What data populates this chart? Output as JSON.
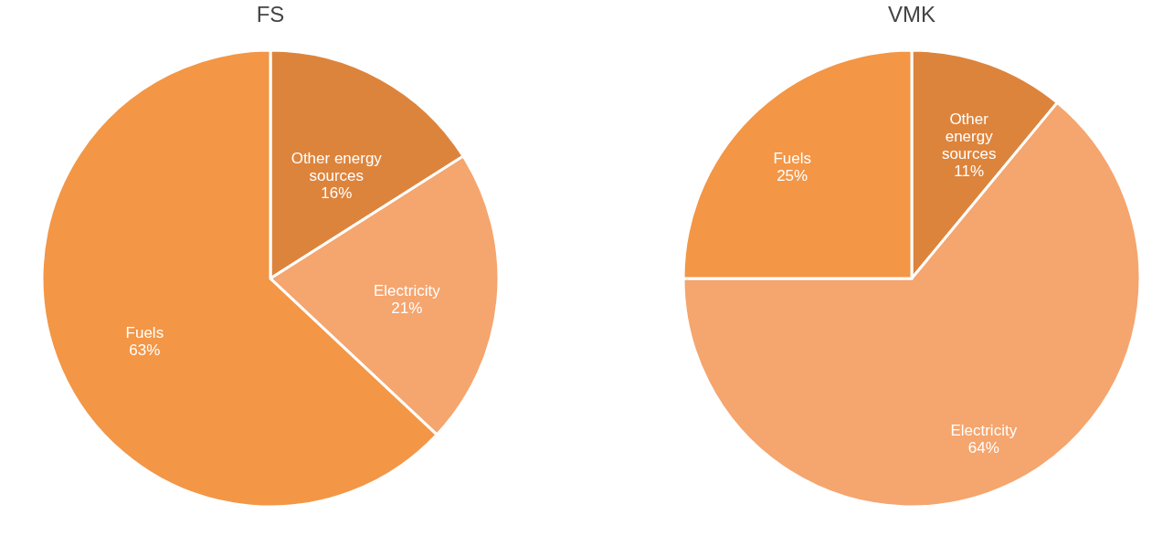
{
  "chart_data": [
    {
      "type": "pie",
      "title": "FS",
      "categories": [
        "Other energy sources",
        "Electricity",
        "Fuels"
      ],
      "values": [
        16,
        21,
        63
      ],
      "value_labels": [
        "16%",
        "21%",
        "63%"
      ],
      "colors": [
        "#dd843c",
        "#f5a56e",
        "#f39646"
      ]
    },
    {
      "type": "pie",
      "title": "VMK",
      "categories": [
        "Other energy sources",
        "Electricity",
        "Fuels"
      ],
      "values": [
        11,
        64,
        25
      ],
      "value_labels": [
        "11%",
        "64%",
        "25%"
      ],
      "colors": [
        "#dd843c",
        "#f5a56e",
        "#f39646"
      ]
    }
  ]
}
